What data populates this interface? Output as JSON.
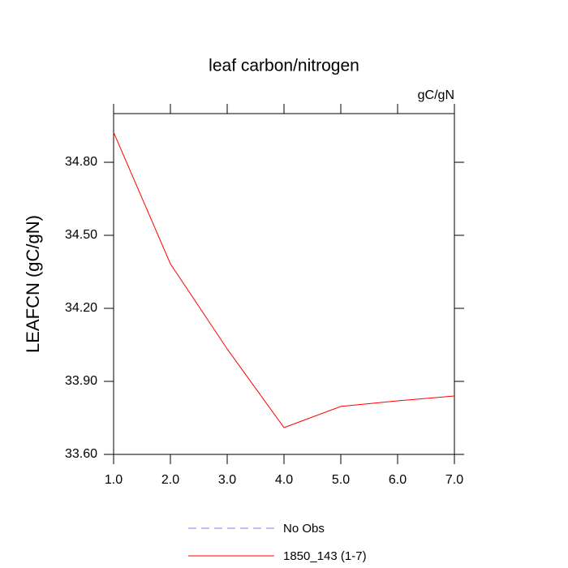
{
  "chart_data": {
    "type": "line",
    "title": "leaf carbon/nitrogen",
    "units_label": "gC/gN",
    "y_label": "LEAFCN  (gC/gN)",
    "x": [
      1,
      2,
      3,
      4,
      5,
      6,
      7
    ],
    "series": [
      {
        "name": "No Obs",
        "color": "#7f7fff",
        "dashed": true,
        "values": [
          null,
          null,
          null,
          null,
          null,
          null,
          null
        ]
      },
      {
        "name": "1850_143 (1-7)",
        "color": "#ff0000",
        "dashed": false,
        "values": [
          34.923,
          34.383,
          34.033,
          33.71,
          33.797,
          33.82,
          33.84
        ]
      }
    ],
    "xlim": [
      1,
      7
    ],
    "xticks": [
      {
        "value": 1,
        "label": "1.0"
      },
      {
        "value": 2,
        "label": "2.0"
      },
      {
        "value": 3,
        "label": "3.0"
      },
      {
        "value": 4,
        "label": "4.0"
      },
      {
        "value": 5,
        "label": "5.0"
      },
      {
        "value": 6,
        "label": "6.0"
      },
      {
        "value": 7,
        "label": "7.0"
      }
    ],
    "ylim": [
      33.6,
      35.0
    ],
    "yticks": [
      {
        "value": 33.6,
        "label": "33.60"
      },
      {
        "value": 33.9,
        "label": "33.90"
      },
      {
        "value": 34.2,
        "label": "34.20"
      },
      {
        "value": 34.5,
        "label": "34.50"
      },
      {
        "value": 34.8,
        "label": "34.80"
      }
    ],
    "grid": false
  }
}
